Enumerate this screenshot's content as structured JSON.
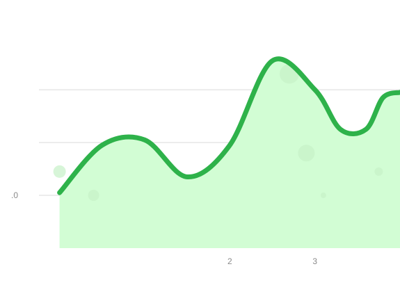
{
  "chart_data": {
    "type": "area",
    "x": [
      0,
      0.5,
      1,
      1.5,
      2,
      2.5,
      3,
      3.3,
      3.6,
      3.8,
      4
    ],
    "values": [
      0.05,
      0.95,
      1.05,
      0.35,
      0.95,
      2.55,
      2.0,
      1.25,
      1.25,
      1.85,
      1.95
    ],
    "x_ticks": [
      {
        "value": 2,
        "label": "2"
      },
      {
        "value": 3,
        "label": "3"
      }
    ],
    "y_ticks": [
      {
        "value": 0,
        "label": ".0"
      }
    ],
    "gridlines_y": [
      0,
      1,
      2
    ],
    "xlim": [
      -0.7,
      4.0
    ],
    "ylim": [
      -1.0,
      3.7
    ],
    "grid": true,
    "legend": "none",
    "colors": {
      "line": "#2eb24a",
      "fill": "#d2fdd4",
      "bubble": "#c6f1c8",
      "grid": "#d9d9d9",
      "tick_text": "#8a8a8a"
    }
  }
}
